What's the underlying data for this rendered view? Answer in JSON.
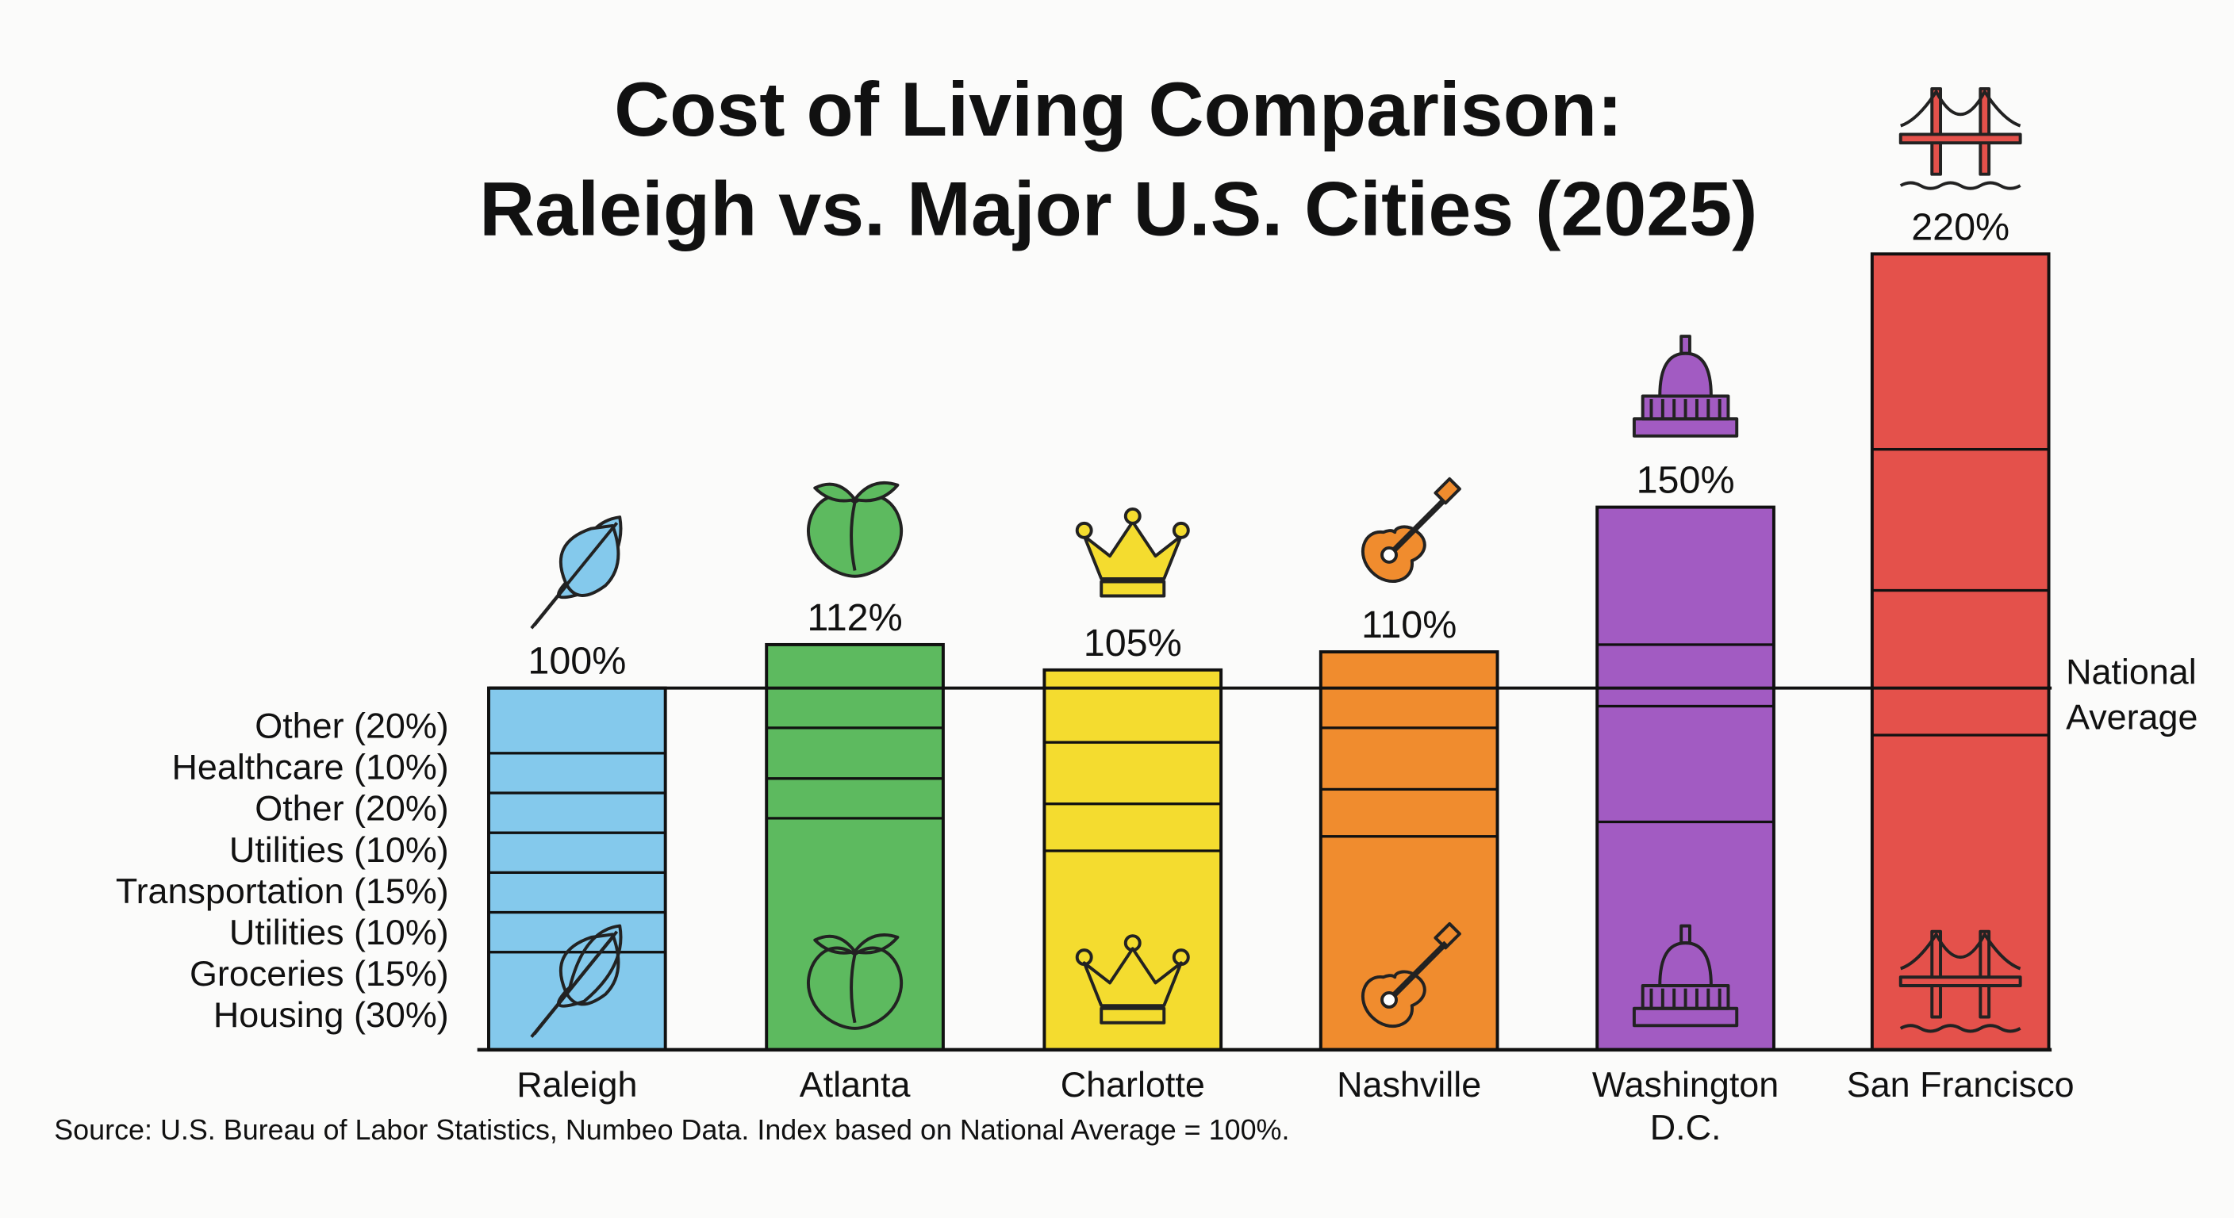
{
  "chart_data": {
    "type": "bar",
    "stacked": true,
    "title": [
      "Cost of Living Comparison:",
      "Raleigh vs. Major U.S. Cities (2025)"
    ],
    "categories": [
      "Raleigh",
      "Atlanta",
      "Charlotte",
      "Nashville",
      "Washington D.C.",
      "San Francisco"
    ],
    "category_lines": [
      [
        "Raleigh"
      ],
      [
        "Atlanta"
      ],
      [
        "Charlotte"
      ],
      [
        "Nashville"
      ],
      [
        "Washington",
        "D.C."
      ],
      [
        "San Francisco"
      ]
    ],
    "values": [
      100,
      112,
      105,
      110,
      150,
      220
    ],
    "value_labels": [
      "100%",
      "112%",
      "105%",
      "110%",
      "150%",
      "220%"
    ],
    "segments": [
      [
        27,
        11,
        11,
        11,
        11,
        11,
        18
      ],
      [
        64,
        11,
        14,
        23
      ],
      [
        55,
        13,
        17,
        20
      ],
      [
        59,
        13,
        17,
        21
      ],
      [
        63,
        32,
        17,
        38
      ],
      [
        87,
        40,
        39,
        54
      ]
    ],
    "colors": [
      "#84c9ec",
      "#5dba5f",
      "#f4dc2f",
      "#f08c2e",
      "#a25bc2",
      "#e4514b"
    ],
    "icons": [
      "oak-leaf",
      "peach",
      "crown",
      "guitar",
      "capitol-building",
      "golden-gate-bridge"
    ],
    "component_labels": [
      "Other (20%)",
      "Healthcare (10%)",
      "Other (20%)",
      "Utilities (10%)",
      "Transportation (15%)",
      "Utilities (10%)",
      "Groceries (15%)",
      "Housing (30%)"
    ],
    "reference_line": {
      "value": 100,
      "label": [
        "National",
        "Average"
      ]
    },
    "ylim": [
      0,
      230
    ],
    "grid": false,
    "source": "Source: U.S. Bureau of Labor Statistics, Numbeo Data. Index based on National Average = 100%."
  }
}
